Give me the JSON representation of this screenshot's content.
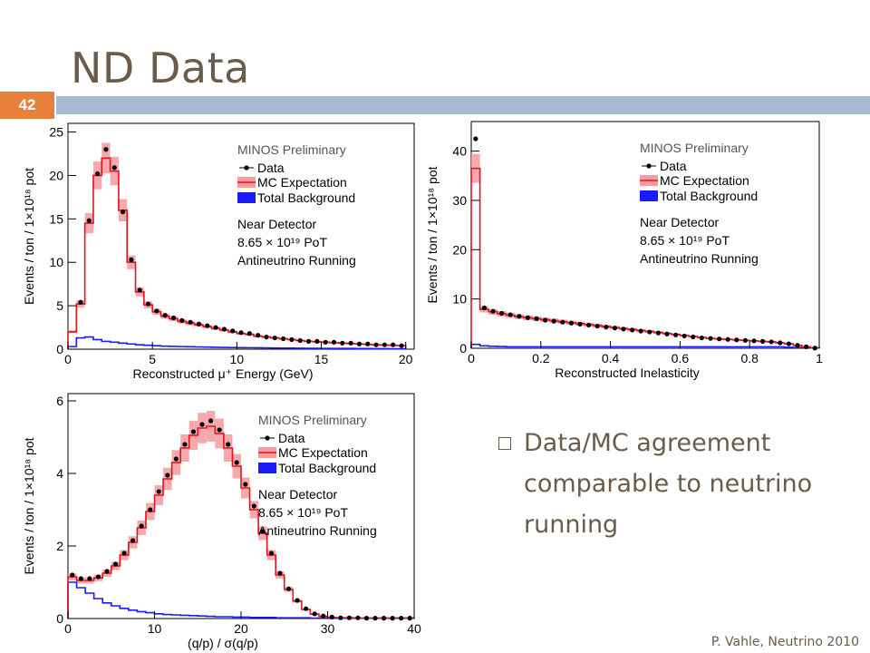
{
  "slide": {
    "title": "ND Data",
    "page_number": "42",
    "footer": "P. Vahle, Neutrino 2010",
    "bullet": "Data/MC agreement comparable to neutrino running",
    "colors": {
      "title_bar": "#a7b9cf",
      "page_badge": "#e7803a",
      "text": "#6b5b4b"
    }
  },
  "chart_data": [
    {
      "type": "line",
      "xlabel": "Reconstructed μ⁺ Energy (GeV)",
      "ylabel": "Events / ton / 1×10¹⁸ pot",
      "xlim": [
        0,
        20.5
      ],
      "ylim": [
        0,
        26
      ],
      "xticks": [
        0,
        5,
        10,
        15,
        20
      ],
      "yticks": [
        0,
        5,
        10,
        15,
        20,
        25
      ],
      "legend": {
        "preliminary": "MINOS Preliminary",
        "entries": [
          "Data",
          "MC Expectation",
          "Total Background"
        ],
        "notes": [
          "Near Detector",
          "8.65 × 10¹⁹ PoT",
          "Antineutrino Running"
        ],
        "position": "top-right"
      },
      "bin_edges": [
        0,
        0.5,
        1,
        1.5,
        2,
        2.5,
        3,
        3.5,
        4,
        4.5,
        5,
        5.5,
        6,
        6.5,
        7,
        7.5,
        8,
        8.5,
        9,
        9.5,
        10,
        10.5,
        11,
        11.5,
        12,
        12.5,
        13,
        13.5,
        14,
        14.5,
        15,
        15.5,
        16,
        16.5,
        17,
        17.5,
        18,
        18.5,
        19,
        19.5,
        20
      ],
      "series": [
        {
          "name": "MC Expectation",
          "values": [
            2.0,
            5.2,
            14.5,
            20.0,
            22.0,
            20.5,
            16.0,
            10.0,
            6.6,
            5.1,
            4.3,
            3.8,
            3.5,
            3.2,
            3.0,
            2.8,
            2.6,
            2.4,
            2.2,
            2.0,
            1.8,
            1.7,
            1.5,
            1.4,
            1.3,
            1.2,
            1.1,
            1.0,
            0.9,
            0.85,
            0.8,
            0.75,
            0.7,
            0.65,
            0.6,
            0.55,
            0.5,
            0.48,
            0.45,
            0.42
          ]
        },
        {
          "name": "Data",
          "values": [
            null,
            5.4,
            14.8,
            20.2,
            23.0,
            20.9,
            15.8,
            10.3,
            6.8,
            5.2,
            4.4,
            3.9,
            3.6,
            3.3,
            3.1,
            2.9,
            2.7,
            2.5,
            2.3,
            2.1,
            1.9,
            1.8,
            1.6,
            1.4,
            1.3,
            1.2,
            1.1,
            1.0,
            0.9,
            0.9,
            0.8,
            0.8,
            0.7,
            0.7,
            0.6,
            0.6,
            0.5,
            0.5,
            0.5,
            0.4
          ]
        },
        {
          "name": "Total Background",
          "values": [
            0.3,
            1.3,
            1.4,
            1.1,
            0.9,
            0.8,
            0.7,
            0.6,
            0.5,
            0.45,
            0.4,
            0.35,
            0.32,
            0.3,
            0.28,
            0.26,
            0.24,
            0.22,
            0.2,
            0.19,
            0.18,
            0.17,
            0.16,
            0.15,
            0.14,
            0.13,
            0.12,
            0.11,
            0.1,
            0.1,
            0.09,
            0.09,
            0.08,
            0.08,
            0.07,
            0.07,
            0.06,
            0.06,
            0.05,
            0.05
          ]
        }
      ]
    },
    {
      "type": "line",
      "xlabel": "Reconstructed Inelasticity",
      "ylabel": "Events / ton / 1×10¹⁸ pot",
      "xlim": [
        0,
        1
      ],
      "ylim": [
        0,
        46
      ],
      "xticks": [
        0,
        0.2,
        0.4,
        0.6,
        0.8,
        1
      ],
      "yticks": [
        0,
        10,
        20,
        30,
        40
      ],
      "legend": {
        "preliminary": "MINOS Preliminary",
        "entries": [
          "Data",
          "MC Expectation",
          "Total Background"
        ],
        "notes": [
          "Near Detector",
          "8.65 × 10¹⁹ PoT",
          "Antineutrino Running"
        ],
        "position": "top-right"
      },
      "bin_edges": [
        0,
        0.025,
        0.05,
        0.075,
        0.1,
        0.125,
        0.15,
        0.175,
        0.2,
        0.225,
        0.25,
        0.275,
        0.3,
        0.325,
        0.35,
        0.375,
        0.4,
        0.425,
        0.45,
        0.475,
        0.5,
        0.525,
        0.55,
        0.575,
        0.6,
        0.625,
        0.65,
        0.675,
        0.7,
        0.725,
        0.75,
        0.775,
        0.8,
        0.825,
        0.85,
        0.875,
        0.9,
        0.925,
        0.95,
        0.975,
        1.0
      ],
      "series": [
        {
          "name": "MC Expectation",
          "values": [
            36.5,
            7.9,
            7.4,
            7.0,
            6.7,
            6.4,
            6.2,
            6.0,
            5.8,
            5.6,
            5.4,
            5.2,
            5.0,
            4.8,
            4.6,
            4.4,
            4.2,
            4.0,
            3.8,
            3.6,
            3.4,
            3.2,
            3.0,
            2.8,
            2.6,
            2.4,
            2.2,
            2.0,
            1.9,
            1.8,
            1.7,
            1.6,
            1.5,
            1.4,
            1.3,
            1.1,
            0.9,
            0.6,
            0.3,
            0.05
          ]
        },
        {
          "name": "Data",
          "values": [
            42.5,
            8.2,
            7.5,
            7.1,
            6.8,
            6.5,
            6.2,
            6.0,
            5.7,
            5.5,
            5.3,
            5.1,
            4.9,
            4.7,
            4.5,
            4.3,
            4.1,
            3.9,
            3.7,
            3.5,
            3.3,
            3.1,
            2.9,
            2.7,
            2.5,
            2.3,
            2.1,
            2.0,
            1.9,
            1.8,
            1.7,
            1.6,
            1.5,
            1.4,
            1.3,
            1.1,
            0.9,
            0.6,
            0.3,
            0.05
          ]
        },
        {
          "name": "Total Background",
          "values": [
            0.8,
            0.5,
            0.4,
            0.35,
            0.3,
            0.3,
            0.3,
            0.3,
            0.3,
            0.3,
            0.3,
            0.3,
            0.3,
            0.3,
            0.3,
            0.3,
            0.3,
            0.3,
            0.3,
            0.3,
            0.3,
            0.3,
            0.3,
            0.3,
            0.3,
            0.3,
            0.3,
            0.3,
            0.3,
            0.3,
            0.3,
            0.3,
            0.3,
            0.3,
            0.3,
            0.3,
            0.2,
            0.15,
            0.1,
            0.05
          ]
        }
      ]
    },
    {
      "type": "line",
      "xlabel": "(q/p) / σ(q/p)",
      "ylabel": "Events / ton / 1×10¹⁸ pot",
      "xlim": [
        0,
        40
      ],
      "ylim": [
        0,
        6.2
      ],
      "xticks": [
        0,
        10,
        20,
        30,
        40
      ],
      "yticks": [
        0,
        2,
        4,
        6
      ],
      "legend": {
        "preliminary": "MINOS Preliminary",
        "entries": [
          "Data",
          "MC Expectation",
          "Total Background"
        ],
        "notes": [
          "Near Detector",
          "8.65 × 10¹⁹ PoT",
          "Antineutrino Running"
        ],
        "position": "top-right"
      },
      "bin_edges": [
        0,
        1,
        2,
        3,
        4,
        5,
        6,
        7,
        8,
        9,
        10,
        11,
        12,
        13,
        14,
        15,
        16,
        17,
        18,
        19,
        20,
        21,
        22,
        23,
        24,
        25,
        26,
        27,
        28,
        29,
        30,
        31,
        32,
        33,
        34,
        35,
        36,
        37,
        38,
        39,
        40
      ],
      "series": [
        {
          "name": "MC Expectation",
          "values": [
            1.15,
            1.05,
            1.05,
            1.12,
            1.25,
            1.45,
            1.75,
            2.1,
            2.5,
            2.95,
            3.4,
            3.85,
            4.3,
            4.7,
            5.05,
            5.25,
            5.3,
            5.1,
            4.7,
            4.2,
            3.6,
            3.0,
            2.35,
            1.75,
            1.2,
            0.8,
            0.48,
            0.25,
            0.12,
            0.06,
            0.03,
            0.02,
            0.02,
            0.01,
            0.01,
            0.01,
            0.01,
            0.01,
            0.01,
            0.01
          ]
        },
        {
          "name": "Data",
          "values": [
            1.2,
            1.1,
            1.1,
            1.15,
            1.3,
            1.5,
            1.8,
            2.15,
            2.55,
            3.0,
            3.5,
            3.95,
            4.4,
            4.8,
            5.15,
            5.35,
            5.45,
            5.2,
            4.8,
            4.3,
            3.7,
            3.1,
            2.4,
            1.8,
            1.25,
            0.82,
            0.5,
            0.27,
            0.13,
            0.07,
            0.04,
            0.02,
            0.02,
            0.02,
            0.01,
            0.01,
            0.01,
            0.01,
            0.01,
            0.01
          ]
        },
        {
          "name": "Total Background",
          "values": [
            1.0,
            0.85,
            0.7,
            0.55,
            0.43,
            0.35,
            0.28,
            0.23,
            0.19,
            0.16,
            0.13,
            0.11,
            0.1,
            0.09,
            0.08,
            0.07,
            0.06,
            0.05,
            0.05,
            0.04,
            0.04,
            0.03,
            0.03,
            0.03,
            0.02,
            0.02,
            0.02,
            0.02,
            0.01,
            0.01,
            0.01,
            0.01,
            0.01,
            0.01,
            0.01,
            0.01,
            0.01,
            0.01,
            0.01,
            0.01
          ]
        }
      ],
      "mc_band_fraction": 0.08
    }
  ]
}
